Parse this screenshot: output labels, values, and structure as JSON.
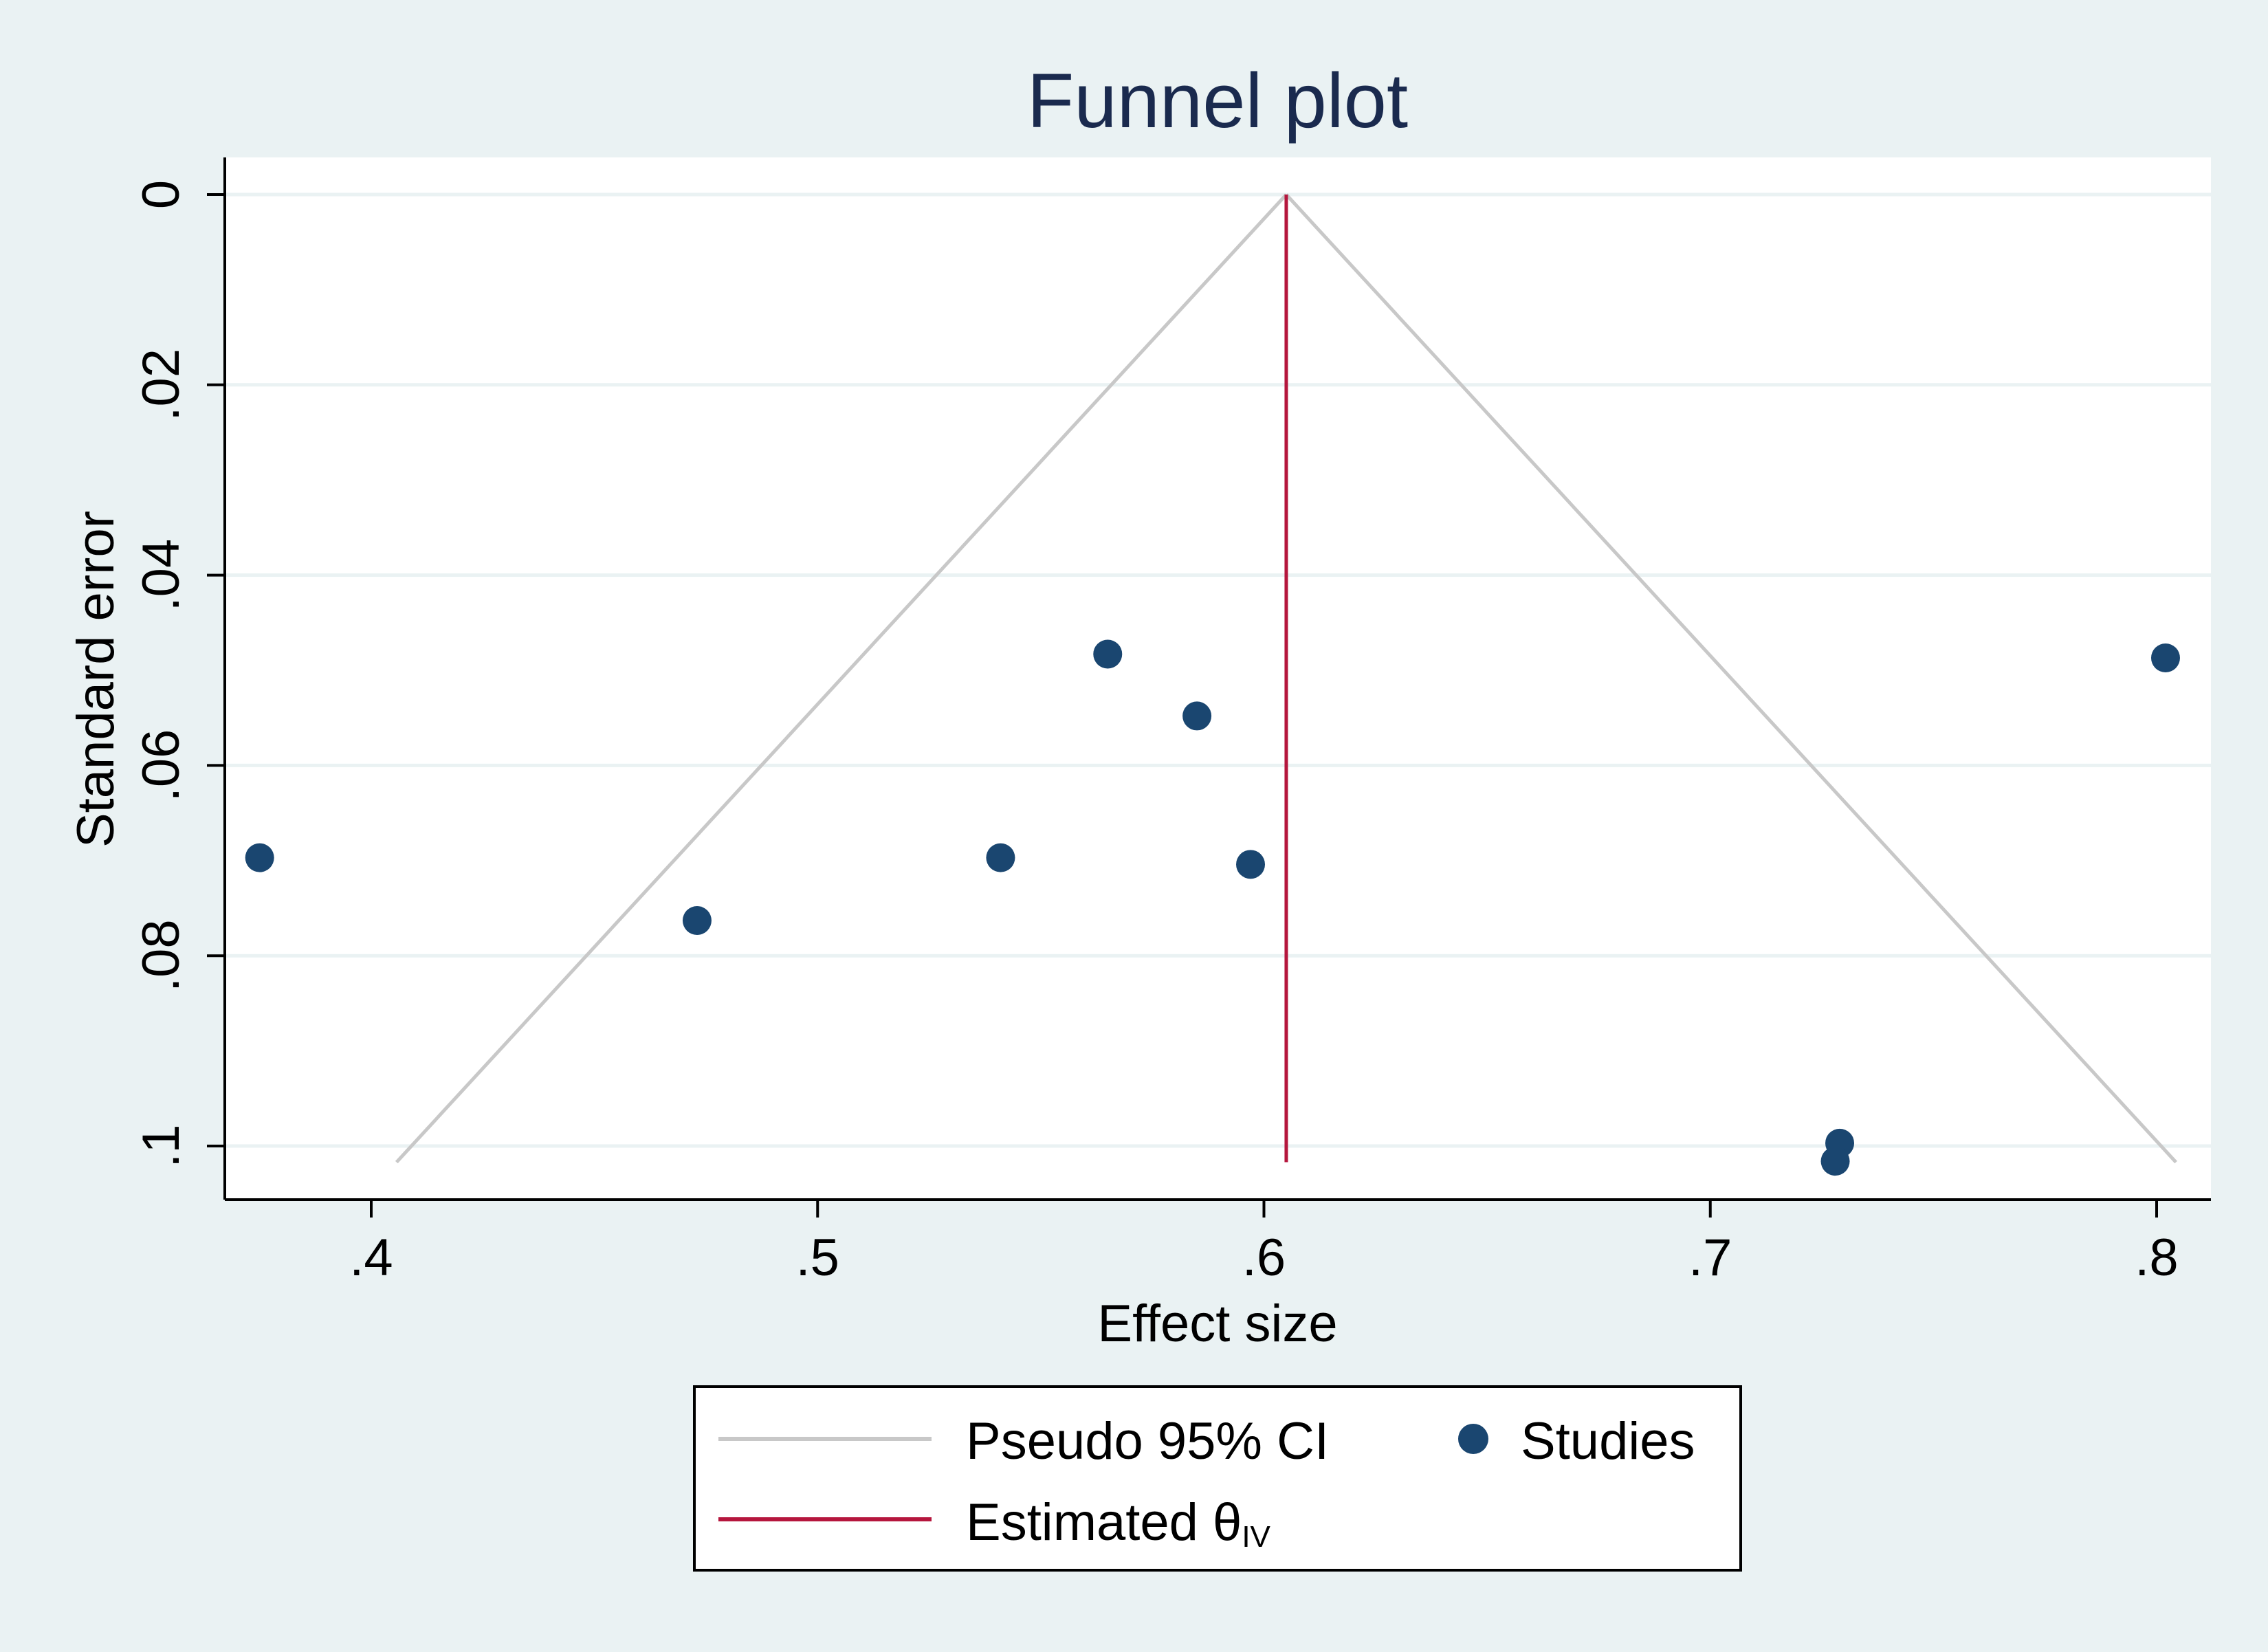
{
  "chart_data": {
    "type": "scatter",
    "title": "Funnel plot",
    "xlabel": "Effect size",
    "ylabel": "Standard error",
    "xlim": [
      0.367,
      0.813
    ],
    "ylim": [
      0,
      0.1055
    ],
    "y_reversed": true,
    "grid": true,
    "x_ticks": [
      {
        "value": 0.4,
        "label": ".4"
      },
      {
        "value": 0.5,
        "label": ".5"
      },
      {
        "value": 0.6,
        "label": ".6"
      },
      {
        "value": 0.7,
        "label": ".7"
      },
      {
        "value": 0.8,
        "label": ".8"
      }
    ],
    "y_ticks": [
      {
        "value": 0,
        "label": "0"
      },
      {
        "value": 0.02,
        "label": ".02"
      },
      {
        "value": 0.04,
        "label": ".04"
      },
      {
        "value": 0.06,
        "label": ".06"
      },
      {
        "value": 0.08,
        "label": ".08"
      },
      {
        "value": 0.1,
        "label": ".1"
      }
    ],
    "estimate": 0.605,
    "se_max": 0.1017,
    "series": [
      {
        "name": "Studies",
        "color": "#1a4670",
        "points": [
          {
            "x": 0.375,
            "y": 0.0697
          },
          {
            "x": 0.473,
            "y": 0.0763
          },
          {
            "x": 0.541,
            "y": 0.0697
          },
          {
            "x": 0.565,
            "y": 0.0483
          },
          {
            "x": 0.585,
            "y": 0.0548
          },
          {
            "x": 0.597,
            "y": 0.0704
          },
          {
            "x": 0.729,
            "y": 0.0997
          },
          {
            "x": 0.728,
            "y": 0.1016
          },
          {
            "x": 0.802,
            "y": 0.0487
          }
        ]
      }
    ],
    "ci_color": "#c8c8c8",
    "estimate_color": "#b5163d",
    "legend": {
      "position": "bottom",
      "entries": [
        {
          "label": "Pseudo 95% CI",
          "type": "line",
          "color": "#c8c8c8"
        },
        {
          "label": "Studies",
          "type": "marker",
          "color": "#1a4670"
        },
        {
          "label": "Estimated θ",
          "subscript": "IV",
          "type": "line",
          "color": "#b5163d"
        }
      ]
    }
  }
}
